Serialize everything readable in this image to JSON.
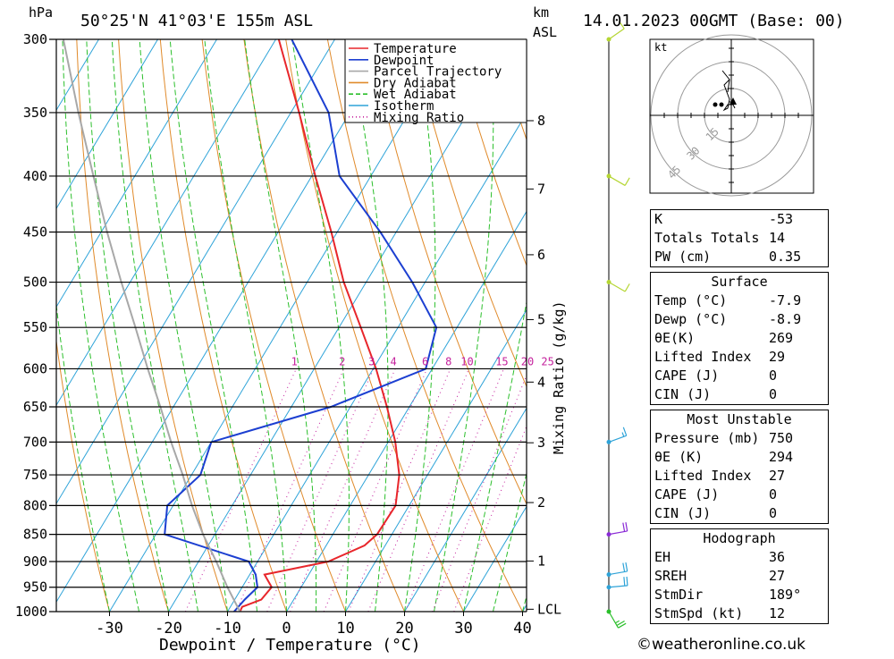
{
  "header": {
    "location": "50°25'N  41°03'E  155m  ASL",
    "datetime": "14.01.2023  00GMT  (Base: 00)",
    "left_unit": "hPa",
    "right_unit_top": "km",
    "right_unit_bottom": "ASL"
  },
  "colors": {
    "temperature": "#e8262b",
    "dewpoint": "#1c3fd1",
    "parcel": "#a8a8a8",
    "dry_adiabat": "#e08a2a",
    "wet_adiabat": "#2bbf2b",
    "isotherm": "#2ea3d8",
    "mixing_ratio": "#c4209c",
    "wind": "#b5d633"
  },
  "chart_data": {
    "type": "skew-t log-p",
    "xlabel": "Dewpoint / Temperature (°C)",
    "ylabel_right": "Mixing Ratio (g/kg)",
    "x_ticks": [
      "-30",
      "-20",
      "-10",
      "0",
      "10",
      "20",
      "30",
      "40"
    ],
    "x_tick_values": [
      -30,
      -20,
      -10,
      0,
      10,
      20,
      30,
      40
    ],
    "pressure_levels": [
      300,
      350,
      400,
      450,
      500,
      550,
      600,
      650,
      700,
      750,
      800,
      850,
      900,
      950,
      1000
    ],
    "height_labels": [
      {
        "label": "8",
        "p": 356
      },
      {
        "label": "7",
        "p": 411
      },
      {
        "label": "6",
        "p": 472
      },
      {
        "label": "5",
        "p": 541
      },
      {
        "label": "4",
        "p": 617
      },
      {
        "label": "3",
        "p": 701
      },
      {
        "label": "2",
        "p": 795
      },
      {
        "label": "1",
        "p": 899
      },
      {
        "label": "LCL",
        "p": 995
      }
    ],
    "mixing_ratio_labels": [
      "1",
      "2",
      "3",
      "4",
      "6",
      "8",
      "10",
      "15",
      "20",
      "25"
    ],
    "mixing_ratio_values": [
      1,
      2,
      3,
      4,
      6,
      8,
      10,
      15,
      20,
      25
    ],
    "legend": [
      "Temperature",
      "Dewpoint",
      "Parcel Trajectory",
      "Dry Adiabat",
      "Wet Adiabat",
      "Isotherm",
      "Mixing Ratio"
    ],
    "series": [
      {
        "name": "Temperature",
        "points": [
          [
            1000,
            -7.9
          ],
          [
            990,
            -8.0
          ],
          [
            975,
            -5.5
          ],
          [
            950,
            -5.0
          ],
          [
            925,
            -7.5
          ],
          [
            900,
            2.0
          ],
          [
            870,
            6.5
          ],
          [
            850,
            7.5
          ],
          [
            800,
            7.7
          ],
          [
            750,
            5.2
          ],
          [
            700,
            1.2
          ],
          [
            650,
            -3.8
          ],
          [
            600,
            -9.5
          ],
          [
            550,
            -16.3
          ],
          [
            500,
            -23.8
          ],
          [
            450,
            -31.0
          ],
          [
            400,
            -39.4
          ],
          [
            350,
            -48.6
          ],
          [
            300,
            -59.5
          ]
        ]
      },
      {
        "name": "Dewpoint",
        "points": [
          [
            1000,
            -8.9
          ],
          [
            975,
            -8.3
          ],
          [
            950,
            -7.4
          ],
          [
            925,
            -9.0
          ],
          [
            900,
            -11.5
          ],
          [
            850,
            -28.5
          ],
          [
            800,
            -31.0
          ],
          [
            750,
            -28.5
          ],
          [
            700,
            -30.0
          ],
          [
            650,
            -13.3
          ],
          [
            600,
            -1.1
          ],
          [
            550,
            -3.5
          ],
          [
            500,
            -12.2
          ],
          [
            450,
            -22.7
          ],
          [
            400,
            -35.3
          ],
          [
            350,
            -43.6
          ],
          [
            300,
            -57.3
          ]
        ]
      },
      {
        "name": "Parcel Trajectory",
        "points": [
          [
            1000,
            -7.9
          ],
          [
            950,
            -12.5
          ],
          [
            900,
            -17.0
          ],
          [
            850,
            -22.0
          ],
          [
            800,
            -26.8
          ],
          [
            750,
            -31.5
          ],
          [
            700,
            -36.8
          ],
          [
            650,
            -42.2
          ],
          [
            600,
            -48.2
          ],
          [
            550,
            -54.5
          ],
          [
            500,
            -61.5
          ],
          [
            450,
            -69.0
          ],
          [
            400,
            -77.0
          ],
          [
            350,
            -86.0
          ],
          [
            300,
            -96.0
          ]
        ]
      }
    ],
    "wind_barbs": [
      {
        "p": 300,
        "direction": 235,
        "speed_kt": 10,
        "color": "#b5d633"
      },
      {
        "p": 400,
        "direction": 300,
        "speed_kt": 10,
        "color": "#b5d633"
      },
      {
        "p": 500,
        "direction": 300,
        "speed_kt": 10,
        "color": "#b5d633"
      },
      {
        "p": 700,
        "direction": 250,
        "speed_kt": 15,
        "color": "#2ea3d8"
      },
      {
        "p": 850,
        "direction": 260,
        "speed_kt": 20,
        "color": "#8a2ad6"
      },
      {
        "p": 925,
        "direction": 260,
        "speed_kt": 20,
        "color": "#2ea3d8"
      },
      {
        "p": 950,
        "direction": 265,
        "speed_kt": 20,
        "color": "#2ea3d8"
      },
      {
        "p": 1000,
        "direction": 330,
        "speed_kt": 25,
        "color": "#2bbf2b"
      }
    ],
    "hodograph": {
      "unit_label": "kt",
      "ring_labels": [
        "15",
        "30",
        "45"
      ],
      "ring_values": [
        15,
        30,
        45
      ],
      "points_kt": [
        [
          2,
          4
        ],
        [
          1,
          6
        ],
        [
          -2,
          6
        ],
        [
          -4,
          3
        ],
        [
          -2,
          4
        ],
        [
          -1,
          9
        ],
        [
          -4,
          17
        ],
        [
          -1,
          20
        ],
        [
          -5,
          25
        ],
        [
          -1,
          20
        ],
        [
          -2,
          13
        ]
      ],
      "storm_motion": [
        1,
        6
      ]
    }
  },
  "indices": {
    "general": [
      {
        "label": "K",
        "value": "-53"
      },
      {
        "label": "Totals Totals",
        "value": "14"
      },
      {
        "label": "PW (cm)",
        "value": "0.35"
      }
    ],
    "surface_title": "Surface",
    "surface": [
      {
        "label": "Temp (°C)",
        "value": "-7.9"
      },
      {
        "label": "Dewp (°C)",
        "value": "-8.9"
      },
      {
        "label": "θE(K)",
        "value": "269"
      },
      {
        "label": "Lifted Index",
        "value": "29"
      },
      {
        "label": "CAPE (J)",
        "value": "0"
      },
      {
        "label": "CIN (J)",
        "value": "0"
      }
    ],
    "unstable_title": "Most Unstable",
    "unstable": [
      {
        "label": "Pressure (mb)",
        "value": "750"
      },
      {
        "label": "θE (K)",
        "value": "294"
      },
      {
        "label": "Lifted Index",
        "value": "27"
      },
      {
        "label": "CAPE (J)",
        "value": "0"
      },
      {
        "label": "CIN (J)",
        "value": "0"
      }
    ],
    "hodo_title": "Hodograph",
    "hodo": [
      {
        "label": "EH",
        "value": "36"
      },
      {
        "label": "SREH",
        "value": "27"
      },
      {
        "label": "StmDir",
        "value": "189°"
      },
      {
        "label": "StmSpd (kt)",
        "value": "12"
      }
    ]
  },
  "credit": "©weatheronline.co.uk"
}
